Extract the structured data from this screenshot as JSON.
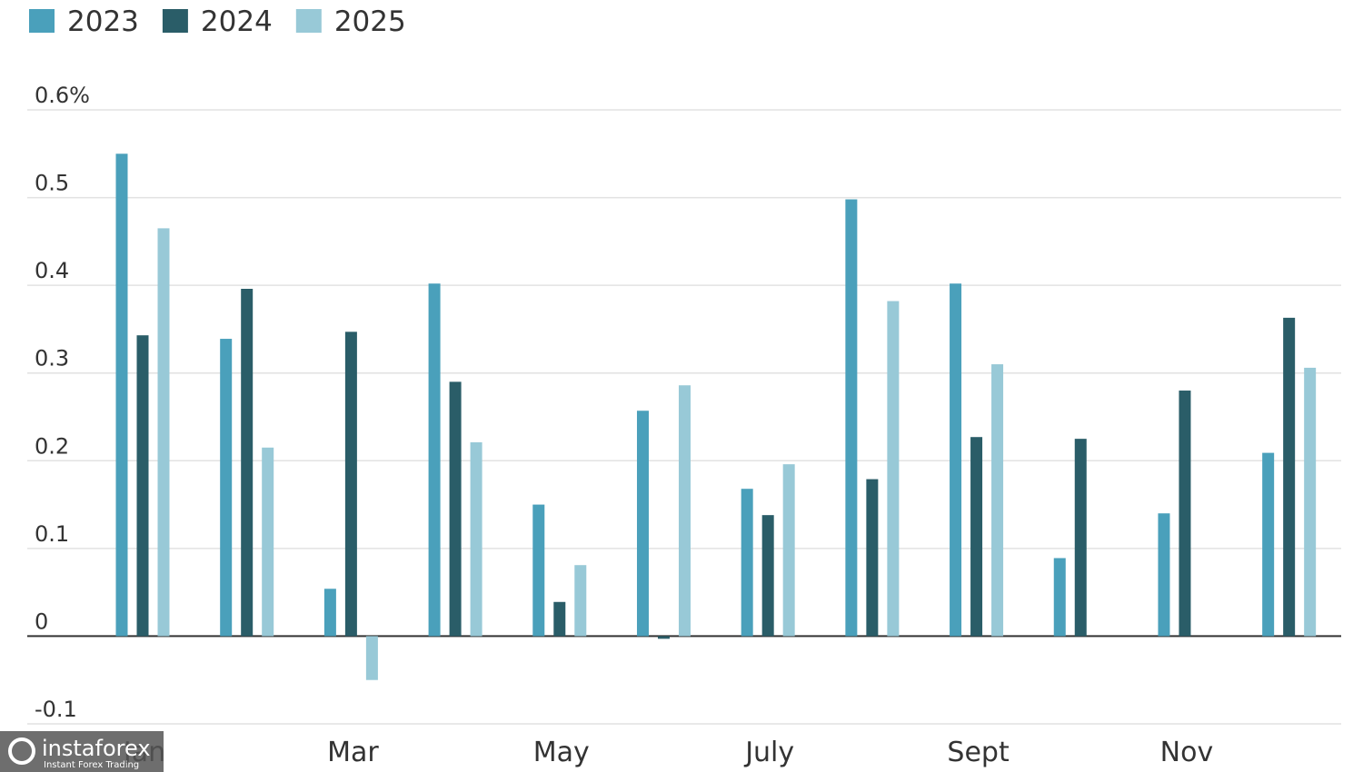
{
  "chart_data": {
    "type": "bar",
    "categories": [
      "Jan",
      null,
      "Mar",
      null,
      "May",
      null,
      "July",
      null,
      "Sept",
      null,
      "Nov",
      null
    ],
    "series": [
      {
        "name": "2023",
        "color": "#4aa0bb",
        "values": [
          0.55,
          0.339,
          0.054,
          0.402,
          0.15,
          0.257,
          0.168,
          0.498,
          0.402,
          0.089,
          0.14,
          0.209
        ]
      },
      {
        "name": "2024",
        "color": "#2a5d68",
        "values": [
          0.343,
          0.396,
          0.347,
          0.29,
          0.039,
          -0.003,
          0.138,
          0.179,
          0.227,
          0.225,
          0.28,
          0.363
        ]
      },
      {
        "name": "2025",
        "color": "#98c9d7",
        "values": [
          0.465,
          0.215,
          -0.05,
          0.221,
          0.081,
          0.286,
          0.196,
          0.382,
          0.31,
          null,
          null,
          0.306
        ]
      }
    ],
    "ylim": [
      -0.1,
      0.6
    ],
    "yticks": [
      -0.1,
      0,
      0.1,
      0.2,
      0.3,
      0.4,
      0.5,
      {
        "value": 0.6,
        "label": "0.6%"
      }
    ],
    "grid": true,
    "legend": "top-left"
  },
  "watermark": {
    "text": "instaforex",
    "subtext": "Instant Forex Trading"
  }
}
